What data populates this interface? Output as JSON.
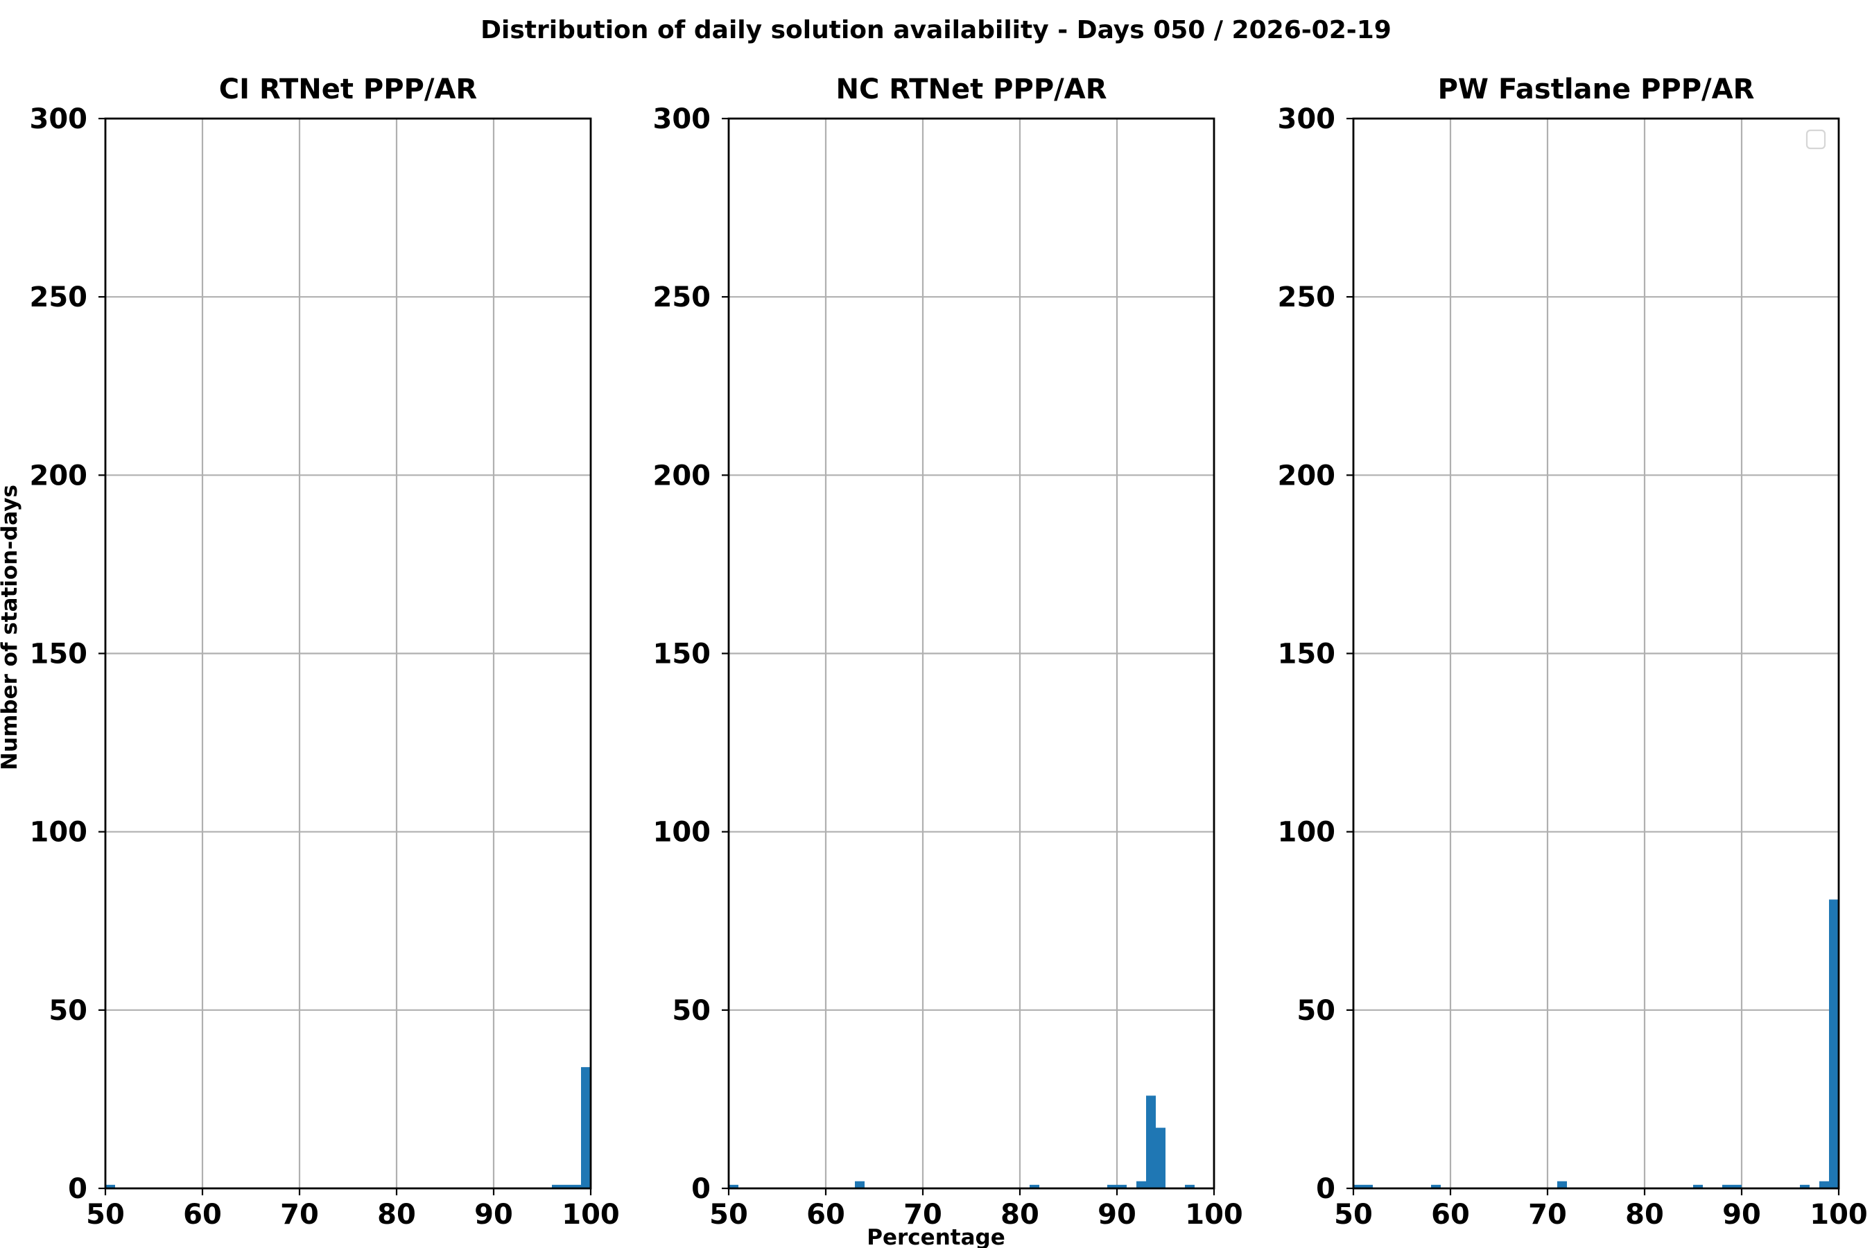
{
  "figure": {
    "suptitle": "Distribution of daily solution availability - Days 050  / 2026-02-19",
    "ylabel": "Number of station-days",
    "xlabel": "Percentage"
  },
  "colors": {
    "bar": "#1f77b4",
    "grid": "#b0b0b0",
    "axis": "#000000"
  },
  "chart_data": [
    {
      "type": "bar",
      "title": "CI RTNet PPP/AR",
      "xlim": [
        50,
        100
      ],
      "ylim": [
        0,
        300
      ],
      "xticks": [
        50,
        60,
        70,
        80,
        90,
        100
      ],
      "yticks": [
        0,
        50,
        100,
        150,
        200,
        250,
        300
      ],
      "grid": true,
      "legend": false,
      "bin_width": 1,
      "bins": [
        {
          "x": 50,
          "count": 1
        },
        {
          "x": 96,
          "count": 1
        },
        {
          "x": 97,
          "count": 1
        },
        {
          "x": 98,
          "count": 1
        },
        {
          "x": 99,
          "count": 34
        }
      ]
    },
    {
      "type": "bar",
      "title": "NC RTNet PPP/AR",
      "xlim": [
        50,
        100
      ],
      "ylim": [
        0,
        300
      ],
      "xticks": [
        50,
        60,
        70,
        80,
        90,
        100
      ],
      "yticks": [
        0,
        50,
        100,
        150,
        200,
        250,
        300
      ],
      "grid": true,
      "legend": false,
      "bin_width": 1,
      "bins": [
        {
          "x": 50,
          "count": 1
        },
        {
          "x": 63,
          "count": 2
        },
        {
          "x": 81,
          "count": 1
        },
        {
          "x": 89,
          "count": 1
        },
        {
          "x": 90,
          "count": 1
        },
        {
          "x": 92,
          "count": 2
        },
        {
          "x": 93,
          "count": 26
        },
        {
          "x": 94,
          "count": 17
        },
        {
          "x": 97,
          "count": 1
        }
      ]
    },
    {
      "type": "bar",
      "title": "PW Fastlane PPP/AR",
      "xlim": [
        50,
        100
      ],
      "ylim": [
        0,
        300
      ],
      "xticks": [
        50,
        60,
        70,
        80,
        90,
        100
      ],
      "yticks": [
        0,
        50,
        100,
        150,
        200,
        250,
        300
      ],
      "grid": true,
      "legend": "top-right (empty)",
      "bin_width": 1,
      "bins": [
        {
          "x": 50,
          "count": 1
        },
        {
          "x": 51,
          "count": 1
        },
        {
          "x": 58,
          "count": 1
        },
        {
          "x": 71,
          "count": 2
        },
        {
          "x": 85,
          "count": 1
        },
        {
          "x": 88,
          "count": 1
        },
        {
          "x": 89,
          "count": 1
        },
        {
          "x": 96,
          "count": 1
        },
        {
          "x": 98,
          "count": 2
        },
        {
          "x": 99,
          "count": 81
        }
      ]
    }
  ]
}
